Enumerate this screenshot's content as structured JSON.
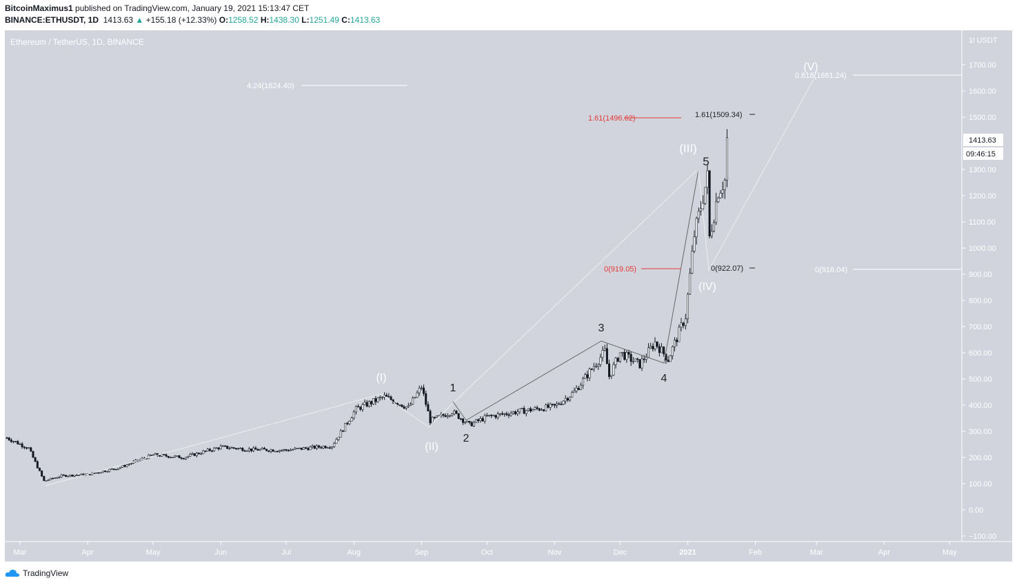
{
  "header": {
    "publisher": "BitcoinMaximus1",
    "published": "published on TradingView.com, January 19, 2021 15:13:47 CET",
    "symbol": "BINANCE:ETHUSDT, 1D",
    "last": "1413.63",
    "change": "+155.18 (+12.33%)",
    "o_label": "O:",
    "o": "1258.52",
    "h_label": "H:",
    "h": "1438.30",
    "l_label": "L:",
    "l": "1251.49",
    "c_label": "C:",
    "c": "1413.63"
  },
  "footer": {
    "brand": "TradingView"
  },
  "colors": {
    "bg": "#d1d4dc",
    "candle": "#131722",
    "up": "#26a69a",
    "fib_red": "#e53935",
    "wave_light": "#f0f0f0",
    "wave_dark": "#555555"
  },
  "chart_data": {
    "type": "candlestick",
    "title": "Ethereum / TetherUS, 1D, BINANCE",
    "yaxis": {
      "unit": "USDT",
      "ticks": [
        "1700.00",
        "1600.00",
        "1500.00",
        "1300.00",
        "1200.00",
        "1100.00",
        "1000.00",
        "900.00",
        "800.00",
        "700.00",
        "600.00",
        "500.00",
        "400.00",
        "300.00",
        "200.00",
        "100.00",
        "0.00",
        "−100.00"
      ],
      "range": [
        -120,
        1800
      ]
    },
    "xaxis": {
      "ticks": [
        "Mar",
        "Apr",
        "May",
        "Jun",
        "Jul",
        "Aug",
        "Sep",
        "Oct",
        "Nov",
        "Dec",
        "2021",
        "Feb",
        "Mar",
        "Apr",
        "May"
      ]
    },
    "price_label": "1413.63",
    "countdown": "09:46:15",
    "approx_closes": [
      [
        "2020-02-24",
        275
      ],
      [
        "2020-03-05",
        235
      ],
      [
        "2020-03-12",
        110
      ],
      [
        "2020-03-20",
        130
      ],
      [
        "2020-04-01",
        135
      ],
      [
        "2020-04-15",
        160
      ],
      [
        "2020-05-01",
        210
      ],
      [
        "2020-05-15",
        200
      ],
      [
        "2020-06-01",
        240
      ],
      [
        "2020-06-15",
        230
      ],
      [
        "2020-07-01",
        228
      ],
      [
        "2020-07-22",
        245
      ],
      [
        "2020-08-02",
        385
      ],
      [
        "2020-08-15",
        432
      ],
      [
        "2020-08-26",
        390
      ],
      [
        "2020-09-01",
        470
      ],
      [
        "2020-09-05",
        340
      ],
      [
        "2020-09-15",
        375
      ],
      [
        "2020-09-23",
        325
      ],
      [
        "2020-10-01",
        355
      ],
      [
        "2020-10-15",
        375
      ],
      [
        "2020-11-01",
        395
      ],
      [
        "2020-11-10",
        450
      ],
      [
        "2020-11-24",
        605
      ],
      [
        "2020-11-26",
        510
      ],
      [
        "2020-12-01",
        600
      ],
      [
        "2020-12-10",
        555
      ],
      [
        "2020-12-17",
        640
      ],
      [
        "2020-12-23",
        575
      ],
      [
        "2020-12-31",
        740
      ],
      [
        "2021-01-04",
        1050
      ],
      [
        "2021-01-10",
        1270
      ],
      [
        "2021-01-11",
        1040
      ],
      [
        "2021-01-13",
        1130
      ],
      [
        "2021-01-15",
        1220
      ],
      [
        "2021-01-18",
        1258
      ],
      [
        "2021-01-19",
        1413.63
      ]
    ],
    "wave_labels": [
      "(I)",
      "(II)",
      "1",
      "2",
      "3",
      "4",
      "5",
      "(III)",
      "(IV)",
      "(V)"
    ],
    "fib_labels": [
      "4.24(1624.40)",
      "1.61(1496.62)",
      "1.61(1509.34)",
      "0(919.05)",
      "0(922.07)",
      "0.618(1661.24)",
      "0(916.04)"
    ]
  }
}
